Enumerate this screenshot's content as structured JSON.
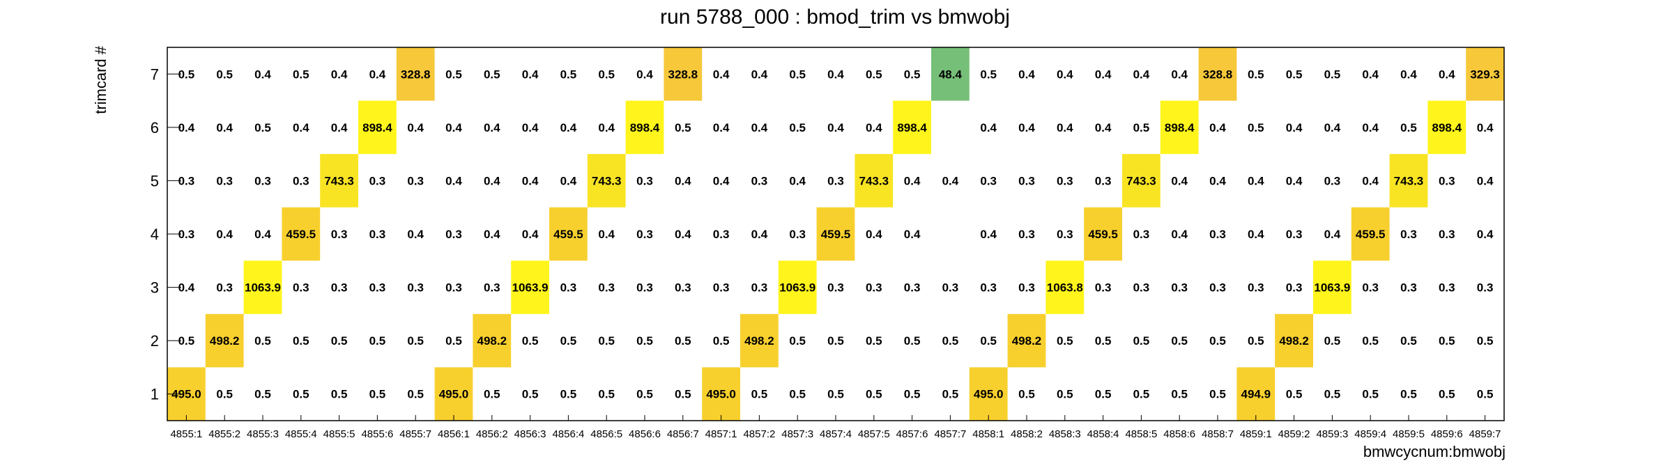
{
  "chart_data": {
    "type": "heatmap",
    "title": "run 5788_000 : bmod_trim vs bmwobj",
    "xlabel": "bmwcycnum:bmwobj",
    "ylabel": "trimcard #",
    "x_categories": [
      "4855:1",
      "4855:2",
      "4855:3",
      "4855:4",
      "4855:5",
      "4855:6",
      "4855:7",
      "4856:1",
      "4856:2",
      "4856:3",
      "4856:4",
      "4856:5",
      "4856:6",
      "4856:7",
      "4857:1",
      "4857:2",
      "4857:3",
      "4857:4",
      "4857:5",
      "4857:6",
      "4857:7",
      "4858:1",
      "4858:2",
      "4858:3",
      "4858:4",
      "4858:5",
      "4858:6",
      "4858:7",
      "4859:1",
      "4859:2",
      "4859:3",
      "4859:4",
      "4859:5",
      "4859:6",
      "4859:7"
    ],
    "y_categories": [
      "1",
      "2",
      "3",
      "4",
      "5",
      "6",
      "7"
    ],
    "values": [
      [
        495.0,
        0.5,
        0.5,
        0.5,
        0.5,
        0.5,
        0.5,
        495.0,
        0.5,
        0.5,
        0.5,
        0.5,
        0.5,
        0.5,
        495.0,
        0.5,
        0.5,
        0.5,
        0.5,
        0.5,
        0.5,
        495.0,
        0.5,
        0.5,
        0.5,
        0.5,
        0.5,
        0.5,
        494.9,
        0.5,
        0.5,
        0.5,
        0.5,
        0.5,
        0.5
      ],
      [
        0.5,
        498.2,
        0.5,
        0.5,
        0.5,
        0.5,
        0.5,
        0.5,
        498.2,
        0.5,
        0.5,
        0.5,
        0.5,
        0.5,
        0.5,
        498.2,
        0.5,
        0.5,
        0.5,
        0.5,
        0.5,
        0.5,
        498.2,
        0.5,
        0.5,
        0.5,
        0.5,
        0.5,
        0.5,
        498.2,
        0.5,
        0.5,
        0.5,
        0.5,
        0.5
      ],
      [
        0.4,
        0.3,
        1063.9,
        0.3,
        0.3,
        0.3,
        0.3,
        0.3,
        0.3,
        1063.9,
        0.3,
        0.3,
        0.3,
        0.3,
        0.3,
        0.3,
        1063.9,
        0.3,
        0.3,
        0.3,
        0.3,
        0.3,
        0.3,
        1063.8,
        0.3,
        0.3,
        0.3,
        0.3,
        0.3,
        0.3,
        1063.9,
        0.3,
        0.3,
        0.3,
        0.3
      ],
      [
        0.3,
        0.4,
        0.4,
        459.5,
        0.3,
        0.3,
        0.4,
        0.3,
        0.4,
        0.4,
        459.5,
        0.4,
        0.3,
        0.4,
        0.3,
        0.4,
        0.3,
        459.5,
        0.4,
        0.4,
        null,
        0.4,
        0.3,
        0.3,
        459.5,
        0.3,
        0.4,
        0.3,
        0.4,
        0.3,
        0.4,
        459.5,
        0.3,
        0.3,
        0.4
      ],
      [
        0.3,
        0.3,
        0.3,
        0.3,
        743.3,
        0.3,
        0.3,
        0.4,
        0.4,
        0.4,
        0.4,
        743.3,
        0.3,
        0.4,
        0.4,
        0.3,
        0.4,
        0.3,
        743.3,
        0.4,
        0.4,
        0.3,
        0.3,
        0.3,
        0.3,
        743.3,
        0.4,
        0.4,
        0.4,
        0.4,
        0.3,
        0.4,
        743.3,
        0.3,
        0.4
      ],
      [
        0.4,
        0.4,
        0.5,
        0.4,
        0.4,
        898.4,
        0.4,
        0.4,
        0.4,
        0.4,
        0.4,
        0.4,
        898.4,
        0.5,
        0.4,
        0.4,
        0.5,
        0.4,
        0.4,
        898.4,
        null,
        0.4,
        0.4,
        0.4,
        0.4,
        0.5,
        898.4,
        0.4,
        0.5,
        0.4,
        0.4,
        0.4,
        0.5,
        898.4,
        0.4
      ],
      [
        0.5,
        0.5,
        0.4,
        0.5,
        0.4,
        0.4,
        328.8,
        0.5,
        0.5,
        0.4,
        0.5,
        0.5,
        0.4,
        328.8,
        0.4,
        0.4,
        0.5,
        0.4,
        0.5,
        0.5,
        48.4,
        0.5,
        0.4,
        0.4,
        0.4,
        0.4,
        0.4,
        328.8,
        0.5,
        0.5,
        0.5,
        0.4,
        0.4,
        0.4,
        329.3
      ]
    ],
    "labels": [
      [
        "495.0",
        "0.5",
        "0.5",
        "0.5",
        "0.5",
        "0.5",
        "0.5",
        "495.0",
        "0.5",
        "0.5",
        "0.5",
        "0.5",
        "0.5",
        "0.5",
        "495.0",
        "0.5",
        "0.5",
        "0.5",
        "0.5",
        "0.5",
        "0.5",
        "495.0",
        "0.5",
        "0.5",
        "0.5",
        "0.5",
        "0.5",
        "0.5",
        "494.9",
        "0.5",
        "0.5",
        "0.5",
        "0.5",
        "0.5",
        "0.5"
      ],
      [
        "0.5",
        "498.2",
        "0.5",
        "0.5",
        "0.5",
        "0.5",
        "0.5",
        "0.5",
        "498.2",
        "0.5",
        "0.5",
        "0.5",
        "0.5",
        "0.5",
        "0.5",
        "498.2",
        "0.5",
        "0.5",
        "0.5",
        "0.5",
        "0.5",
        "0.5",
        "498.2",
        "0.5",
        "0.5",
        "0.5",
        "0.5",
        "0.5",
        "0.5",
        "498.2",
        "0.5",
        "0.5",
        "0.5",
        "0.5",
        "0.5"
      ],
      [
        "0.4",
        "0.3",
        "1063.9",
        "0.3",
        "0.3",
        "0.3",
        "0.3",
        "0.3",
        "0.3",
        "1063.9",
        "0.3",
        "0.3",
        "0.3",
        "0.3",
        "0.3",
        "0.3",
        "1063.9",
        "0.3",
        "0.3",
        "0.3",
        "0.3",
        "0.3",
        "0.3",
        "1063.8",
        "0.3",
        "0.3",
        "0.3",
        "0.3",
        "0.3",
        "0.3",
        "1063.9",
        "0.3",
        "0.3",
        "0.3",
        "0.3"
      ],
      [
        "0.3",
        "0.4",
        "0.4",
        "459.5",
        "0.3",
        "0.3",
        "0.4",
        "0.3",
        "0.4",
        "0.4",
        "459.5",
        "0.4",
        "0.3",
        "0.4",
        "0.3",
        "0.4",
        "0.3",
        "459.5",
        "0.4",
        "0.4",
        "",
        "0.4",
        "0.3",
        "0.3",
        "459.5",
        "0.3",
        "0.4",
        "0.3",
        "0.4",
        "0.3",
        "0.4",
        "459.5",
        "0.3",
        "0.3",
        "0.4"
      ],
      [
        "0.3",
        "0.3",
        "0.3",
        "0.3",
        "743.3",
        "0.3",
        "0.3",
        "0.4",
        "0.4",
        "0.4",
        "0.4",
        "743.3",
        "0.3",
        "0.4",
        "0.4",
        "0.3",
        "0.4",
        "0.3",
        "743.3",
        "0.4",
        "0.4",
        "0.3",
        "0.3",
        "0.3",
        "0.3",
        "743.3",
        "0.4",
        "0.4",
        "0.4",
        "0.4",
        "0.3",
        "0.4",
        "743.3",
        "0.3",
        "0.4"
      ],
      [
        "0.4",
        "0.4",
        "0.5",
        "0.4",
        "0.4",
        "898.4",
        "0.4",
        "0.4",
        "0.4",
        "0.4",
        "0.4",
        "0.4",
        "898.4",
        "0.5",
        "0.4",
        "0.4",
        "0.5",
        "0.4",
        "0.4",
        "898.4",
        "",
        "0.4",
        "0.4",
        "0.4",
        "0.4",
        "0.5",
        "898.4",
        "0.4",
        "0.5",
        "0.4",
        "0.4",
        "0.4",
        "0.5",
        "898.4",
        "0.4"
      ],
      [
        "0.5",
        "0.5",
        "0.4",
        "0.5",
        "0.4",
        "0.4",
        "328.8",
        "0.5",
        "0.5",
        "0.4",
        "0.5",
        "0.5",
        "0.4",
        "328.8",
        "0.4",
        "0.4",
        "0.5",
        "0.4",
        "0.5",
        "0.5",
        "48.4",
        "0.5",
        "0.4",
        "0.4",
        "0.4",
        "0.4",
        "0.4",
        "328.8",
        "0.5",
        "0.5",
        "0.5",
        "0.4",
        "0.4",
        "0.4",
        "329.3"
      ]
    ],
    "color_scale": [
      "#5aa572",
      "#76bf78",
      "#f6c83a",
      "#f8d02e",
      "#f9e424",
      "#fff51c"
    ],
    "grid": false,
    "legend": "none"
  }
}
